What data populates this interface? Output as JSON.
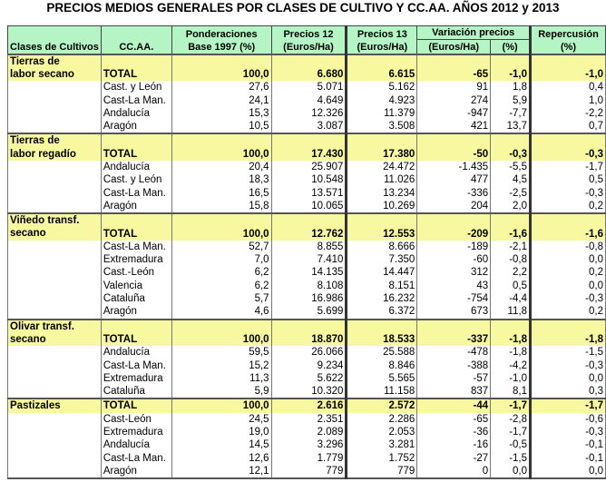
{
  "title": "PRECIOS MEDIOS GENERALES POR CLASES DE CULTIVO Y CC.AA. AÑOS 2012 y 2013",
  "headers": {
    "clases": "Clases de Cultivos",
    "ccaa": "CC.AA.",
    "pond": "Ponderaciones Base 1997 (%)",
    "p12": "Precios 12 (Euros/Ha)",
    "p13": "Precios 13 (Euros/Ha)",
    "var": "Variación precios",
    "var_eur": "(Euros/Ha)",
    "var_pct": "(%)",
    "rep": "Repercusión (%)"
  },
  "groups": [
    {
      "name_l1": "Tierras de",
      "name_l2": "labor secano",
      "total": [
        "TOTAL",
        "100,0",
        "6.680",
        "6.615",
        "-65",
        "-1,0",
        "-1,0"
      ],
      "rows": [
        [
          "Cast. y León",
          "27,6",
          "5.071",
          "5.162",
          "91",
          "1,8",
          "0,4"
        ],
        [
          "Cast-La Man.",
          "24,1",
          "4.649",
          "4.923",
          "274",
          "5,9",
          "1,0"
        ],
        [
          "Andalucía",
          "15,3",
          "12.326",
          "11.379",
          "-947",
          "-7,7",
          "-2,2"
        ],
        [
          "Aragón",
          "10,5",
          "3.087",
          "3.508",
          "421",
          "13,7",
          "0,7"
        ]
      ]
    },
    {
      "name_l1": "Tierras de",
      "name_l2": "labor regadío",
      "total": [
        "TOTAL",
        "100,0",
        "17.430",
        "17.380",
        "-50",
        "-0,3",
        "-0,3"
      ],
      "rows": [
        [
          "Andalucía",
          "20,4",
          "25.907",
          "24.472",
          "-1.435",
          "-5,5",
          "-1,7"
        ],
        [
          "Cast. y León",
          "18,3",
          "10.548",
          "11.026",
          "477",
          "4,5",
          "0,5"
        ],
        [
          "Cast-La Man.",
          "16,5",
          "13.571",
          "13.234",
          "-336",
          "-2,5",
          "-0,3"
        ],
        [
          "Aragón",
          "15,8",
          "10.065",
          "10.269",
          "204",
          "2,0",
          "0,2"
        ]
      ]
    },
    {
      "name_l1": "Viñedo transf.",
      "name_l2": "secano",
      "total": [
        "TOTAL",
        "100,0",
        "12.762",
        "12.553",
        "-209",
        "-1,6",
        "-1,6"
      ],
      "rows": [
        [
          "Cast-La Man.",
          "52,7",
          "8.855",
          "8.666",
          "-189",
          "-2,1",
          "-0,8"
        ],
        [
          "Extremadura",
          "7,0",
          "7.410",
          "7.350",
          "-60",
          "-0,8",
          "0,0"
        ],
        [
          "Cast.-León",
          "6,2",
          "14.135",
          "14.447",
          "312",
          "2,2",
          "0,2"
        ],
        [
          "Valencia",
          "6,2",
          "8.108",
          "8.151",
          "43",
          "0,5",
          "0,0"
        ],
        [
          "Cataluña",
          "5,7",
          "16.986",
          "16.232",
          "-754",
          "-4,4",
          "-0,3"
        ],
        [
          "Aragón",
          "4,6",
          "5.699",
          "6.372",
          "673",
          "11,8",
          "0,2"
        ]
      ]
    },
    {
      "name_l1": "Olivar transf.",
      "name_l2": "secano",
      "total": [
        "TOTAL",
        "100,0",
        "18.870",
        "18.533",
        "-337",
        "-1,8",
        "-1,8"
      ],
      "rows": [
        [
          "Andalucía",
          "59,5",
          "26.066",
          "25.588",
          "-478",
          "-1,8",
          "-1,5"
        ],
        [
          "Cast-La Man.",
          "15,2",
          "9.234",
          "8.846",
          "-388",
          "-4,2",
          "-0,3"
        ],
        [
          "Extremadura",
          "11,3",
          "5.622",
          "5.565",
          "-57",
          "-1,0",
          "0,0"
        ],
        [
          "Cataluña",
          "5,9",
          "10.320",
          "11.158",
          "837",
          "8,1",
          "0,3"
        ]
      ]
    },
    {
      "name_l1": "Pastizales",
      "name_l2": "",
      "total": [
        "TOTAL",
        "100,0",
        "2.616",
        "2.572",
        "-44",
        "-1,7",
        "-1,7"
      ],
      "rows": [
        [
          "Cast-León",
          "24,5",
          "2.351",
          "2.286",
          "-65",
          "-2,8",
          "-0,6"
        ],
        [
          "Extremadura",
          "19,0",
          "2.089",
          "2.053",
          "-36",
          "-1,7",
          "-0,3"
        ],
        [
          "Andalucía",
          "14,5",
          "3.296",
          "3.281",
          "-16",
          "-0,5",
          "-0,1"
        ],
        [
          "Cast-La Man.",
          "12,6",
          "1.779",
          "1.752",
          "-27",
          "-1,5",
          "-0,1"
        ],
        [
          "Aragón",
          "12,1",
          "779",
          "779",
          "0",
          "0,0",
          "0,0"
        ]
      ]
    }
  ]
}
